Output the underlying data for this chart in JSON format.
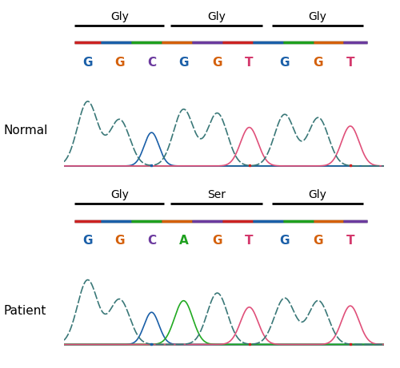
{
  "normal_bases": [
    {
      "letter": "G",
      "color": "#1a5fa8",
      "x": 0
    },
    {
      "letter": "G",
      "color": "#d4600a",
      "x": 1
    },
    {
      "letter": "C",
      "color": "#6b3a9e",
      "x": 2
    },
    {
      "letter": "G",
      "color": "#1a5fa8",
      "x": 3
    },
    {
      "letter": "G",
      "color": "#d4600a",
      "x": 4
    },
    {
      "letter": "T",
      "color": "#d4386c",
      "x": 5
    },
    {
      "letter": "G",
      "color": "#1a5fa8",
      "x": 6
    },
    {
      "letter": "G",
      "color": "#d4600a",
      "x": 7
    },
    {
      "letter": "T",
      "color": "#d4386c",
      "x": 8
    }
  ],
  "patient_bases": [
    {
      "letter": "G",
      "color": "#1a5fa8",
      "x": 0
    },
    {
      "letter": "G",
      "color": "#d4600a",
      "x": 1
    },
    {
      "letter": "C",
      "color": "#6b3a9e",
      "x": 2
    },
    {
      "letter": "A",
      "color": "#1ea01e",
      "x": 3
    },
    {
      "letter": "G",
      "color": "#d4600a",
      "x": 4
    },
    {
      "letter": "T",
      "color": "#d4386c",
      "x": 5
    },
    {
      "letter": "G",
      "color": "#1a5fa8",
      "x": 6
    },
    {
      "letter": "G",
      "color": "#d4600a",
      "x": 7
    },
    {
      "letter": "T",
      "color": "#d4386c",
      "x": 8
    }
  ],
  "codon_groups_normal": [
    {
      "label": "Gly",
      "start": 0,
      "end": 2
    },
    {
      "label": "Gly",
      "start": 3,
      "end": 5
    },
    {
      "label": "Gly",
      "start": 6,
      "end": 8
    }
  ],
  "codon_groups_patient": [
    {
      "label": "Gly",
      "start": 0,
      "end": 2
    },
    {
      "label": "Ser",
      "start": 3,
      "end": 5
    },
    {
      "label": "Gly",
      "start": 6,
      "end": 8
    }
  ],
  "background_color": "#ffffff",
  "normal_label": "Normal",
  "patient_label": "Patient",
  "teal": "#4a9090",
  "green": "#22aa22",
  "pink": "#e0507a",
  "blue": "#1a5fa8",
  "gray_line": "#888888",
  "rainbow_colors": [
    "#cc2222",
    "#1a5fa8",
    "#1ea01e",
    "#d4600a",
    "#6b3a9e"
  ]
}
